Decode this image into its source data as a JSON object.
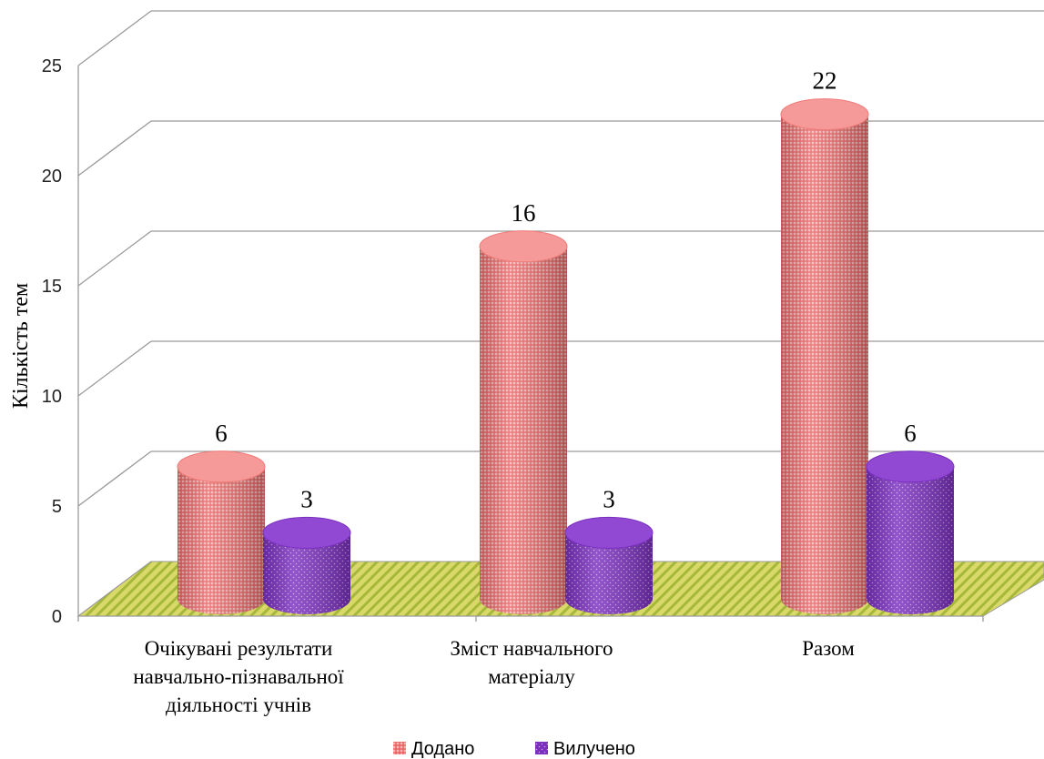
{
  "chart_data": {
    "type": "bar",
    "style": "3d-cylinder",
    "categories": [
      [
        "Очікувані результати",
        "навчально-пізнавальної",
        "діяльності учнів"
      ],
      [
        "Зміст навчального",
        "матеріалу"
      ],
      [
        "Разом"
      ]
    ],
    "series": [
      {
        "name": "Додано",
        "values": [
          6,
          16,
          22
        ],
        "color": "#f07a78"
      },
      {
        "name": "Вилучено",
        "values": [
          3,
          3,
          6
        ],
        "color": "#7b2fbf"
      }
    ],
    "ylabel": "Кількість тем",
    "ylim": [
      0,
      25
    ],
    "yticks": [
      0,
      5,
      10,
      15,
      20,
      25
    ],
    "grid": true,
    "floor_color": "#c8cc4a",
    "legend_position": "bottom"
  }
}
